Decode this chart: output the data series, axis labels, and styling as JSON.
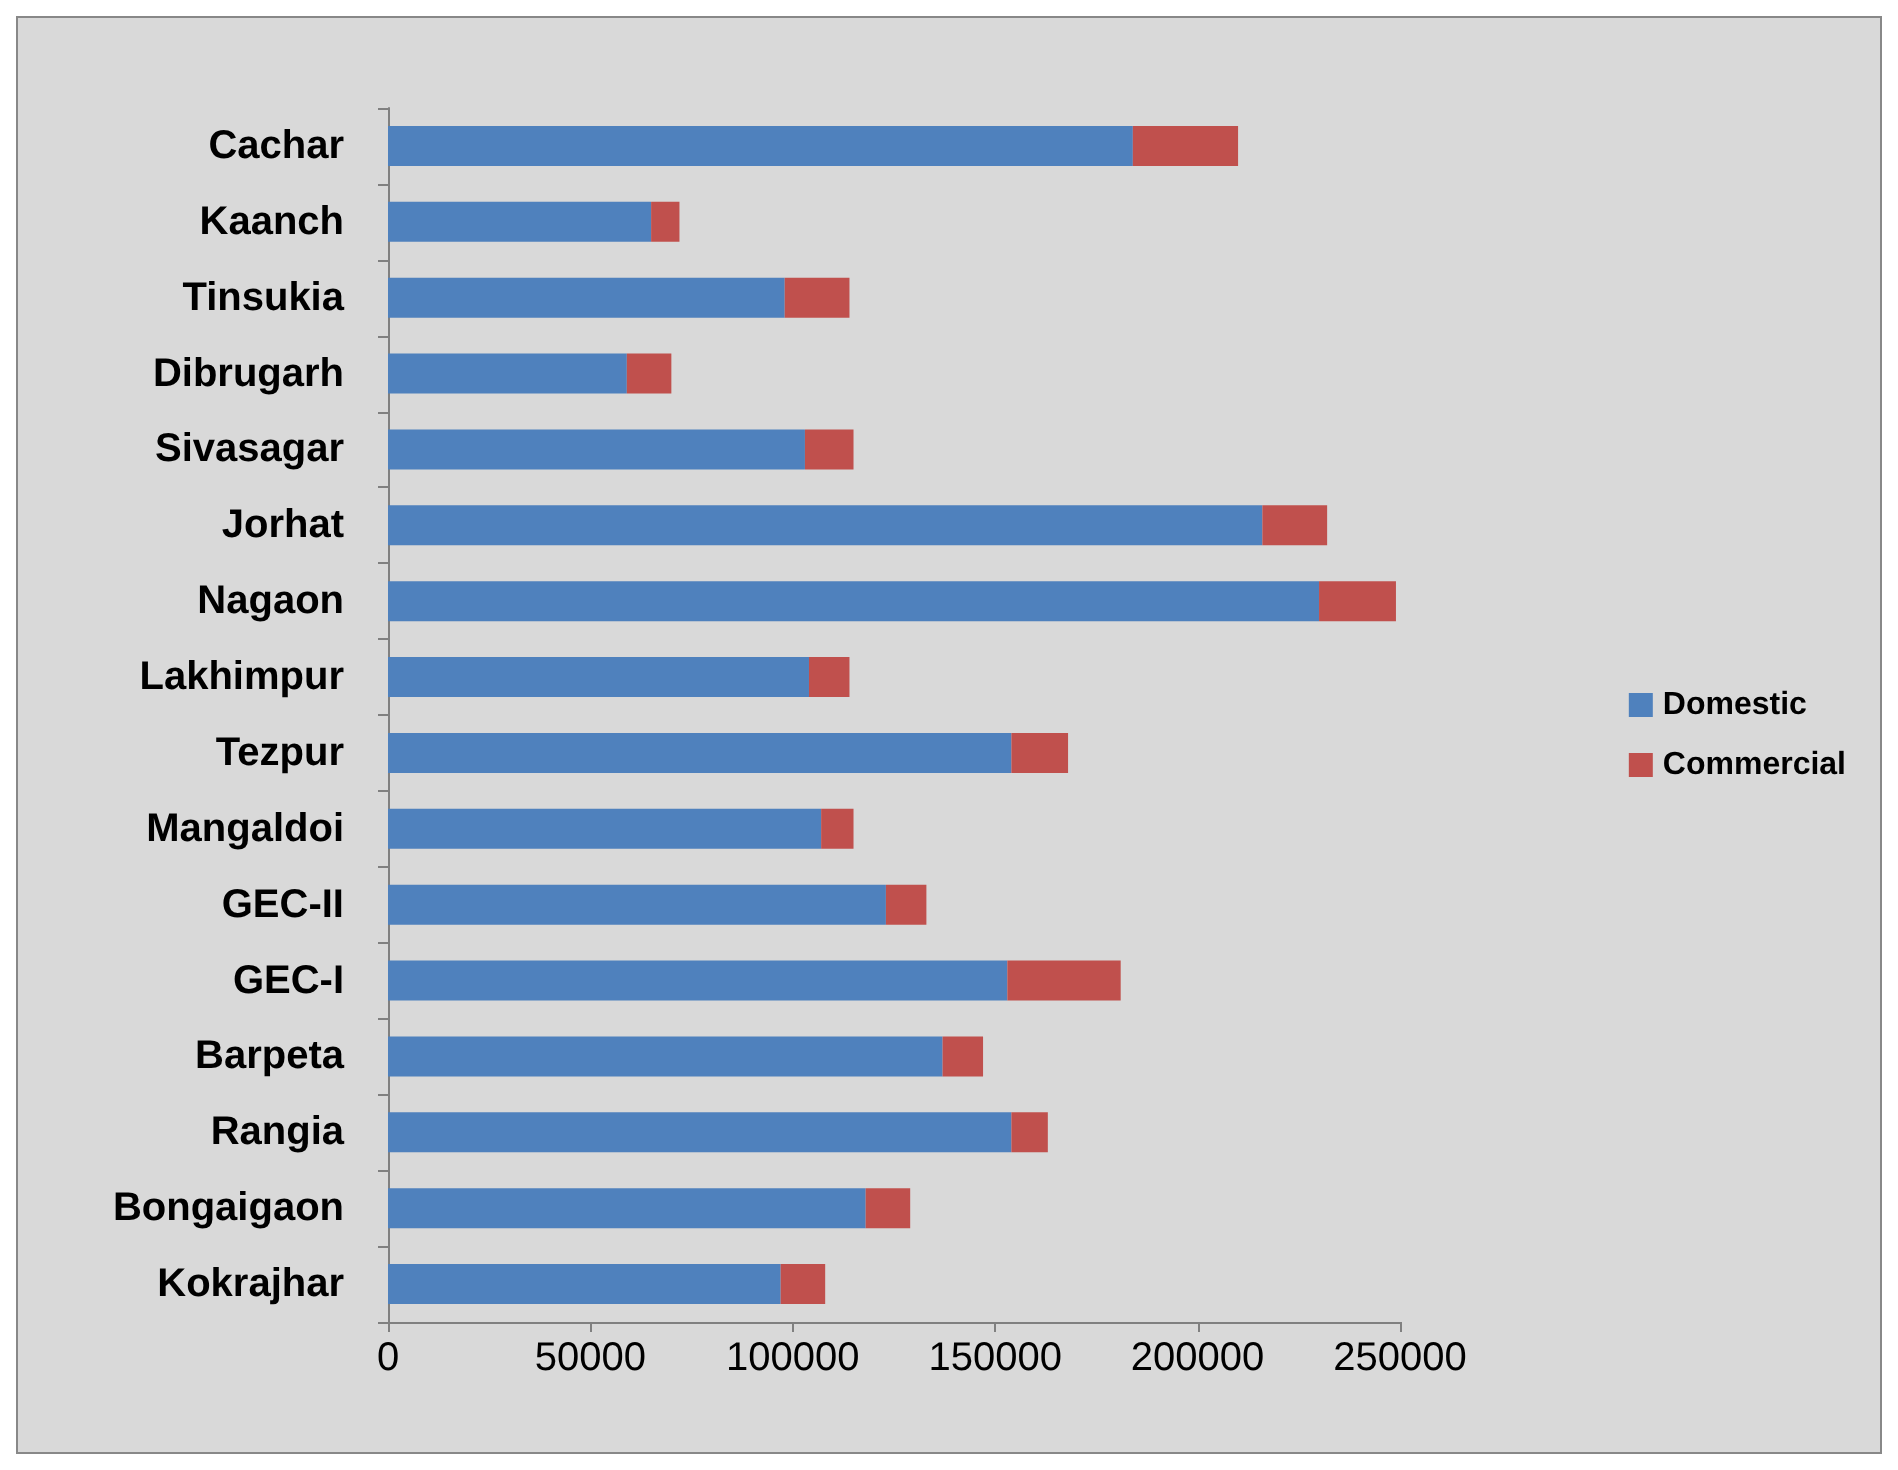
{
  "chart_data": {
    "type": "bar",
    "orientation": "horizontal",
    "stacked": true,
    "categories": [
      "Cachar",
      "Kaanch",
      "Tinsukia",
      "Dibrugarh",
      "Sivasagar",
      "Jorhat",
      "Nagaon",
      "Lakhimpur",
      "Tezpur",
      "Mangaldoi",
      "GEC-II",
      "GEC-I",
      "Barpeta",
      "Rangia",
      "Bongaigaon",
      "Kokrajhar"
    ],
    "series": [
      {
        "name": "Domestic",
        "color": "#4f81bd",
        "values": [
          184000,
          65000,
          98000,
          59000,
          103000,
          216000,
          230000,
          104000,
          154000,
          107000,
          123000,
          153000,
          137000,
          154000,
          118000,
          97000
        ]
      },
      {
        "name": "Commercial",
        "color": "#c0504d",
        "values": [
          26000,
          7000,
          16000,
          11000,
          12000,
          16000,
          19000,
          10000,
          14000,
          8000,
          10000,
          28000,
          10000,
          9000,
          11000,
          11000
        ]
      }
    ],
    "xlim": [
      0,
      250000
    ],
    "xticks": [
      0,
      50000,
      100000,
      150000,
      200000,
      250000
    ],
    "grid": false,
    "legend": "right"
  }
}
